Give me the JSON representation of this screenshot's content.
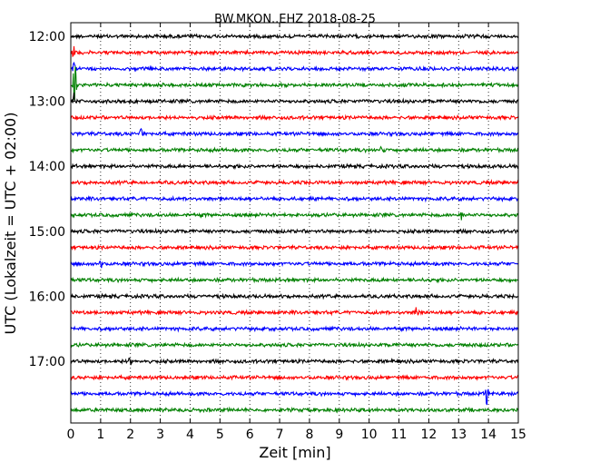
{
  "chart_data": {
    "type": "line",
    "title": "BW.MKON..EHZ 2018-08-25",
    "xlabel": "Zeit  [min]",
    "ylabel": "UTC (Lokalzeit = UTC + 02:00)",
    "xlim": [
      0,
      15
    ],
    "x_ticks": [
      "0",
      "1",
      "2",
      "3",
      "4",
      "5",
      "6",
      "7",
      "8",
      "9",
      "10",
      "11",
      "12",
      "13",
      "14",
      "15"
    ],
    "y_tick_labels": [
      "12:00",
      "13:00",
      "14:00",
      "15:00",
      "16:00",
      "17:00"
    ],
    "grid": true,
    "trace_interval_min": 15,
    "series": [
      {
        "start": "12:00",
        "color": "#000000",
        "events": []
      },
      {
        "start": "12:15",
        "color": "#ff0000",
        "events": [
          {
            "x": 0.1,
            "amp": 0.5
          }
        ]
      },
      {
        "start": "12:30",
        "color": "#0000ff",
        "events": [
          {
            "x": 0.12,
            "amp": 0.6
          }
        ]
      },
      {
        "start": "12:45",
        "color": "#008000",
        "events": [
          {
            "x": 0.12,
            "amp": 2.2
          }
        ]
      },
      {
        "start": "13:00",
        "color": "#000000",
        "events": [
          {
            "x": 0.12,
            "amp": 0.6
          }
        ]
      },
      {
        "start": "13:15",
        "color": "#ff0000",
        "events": []
      },
      {
        "start": "13:30",
        "color": "#0000ff",
        "events": [
          {
            "x": 2.35,
            "amp": 0.6
          }
        ]
      },
      {
        "start": "13:45",
        "color": "#008000",
        "events": [
          {
            "x": 10.4,
            "amp": 0.3
          }
        ]
      },
      {
        "start": "14:00",
        "color": "#000000",
        "events": []
      },
      {
        "start": "14:15",
        "color": "#ff0000",
        "events": []
      },
      {
        "start": "14:30",
        "color": "#0000ff",
        "events": []
      },
      {
        "start": "14:45",
        "color": "#008000",
        "events": [
          {
            "x": 13.1,
            "amp": 0.3
          }
        ]
      },
      {
        "start": "15:00",
        "color": "#000000",
        "events": []
      },
      {
        "start": "15:15",
        "color": "#ff0000",
        "events": []
      },
      {
        "start": "15:30",
        "color": "#0000ff",
        "events": [
          {
            "x": 1.0,
            "amp": 0.3
          }
        ]
      },
      {
        "start": "15:45",
        "color": "#008000",
        "events": []
      },
      {
        "start": "16:00",
        "color": "#000000",
        "events": []
      },
      {
        "start": "16:15",
        "color": "#ff0000",
        "events": [
          {
            "x": 11.6,
            "amp": 0.9
          }
        ]
      },
      {
        "start": "16:30",
        "color": "#0000ff",
        "events": []
      },
      {
        "start": "16:45",
        "color": "#008000",
        "events": []
      },
      {
        "start": "17:00",
        "color": "#000000",
        "events": [
          {
            "x": 2.0,
            "amp": 0.5
          }
        ]
      },
      {
        "start": "17:15",
        "color": "#ff0000",
        "events": []
      },
      {
        "start": "17:30",
        "color": "#0000ff",
        "events": [
          {
            "x": 13.95,
            "amp": 1.1
          }
        ]
      },
      {
        "start": "17:45",
        "color": "#008000",
        "events": []
      }
    ]
  }
}
